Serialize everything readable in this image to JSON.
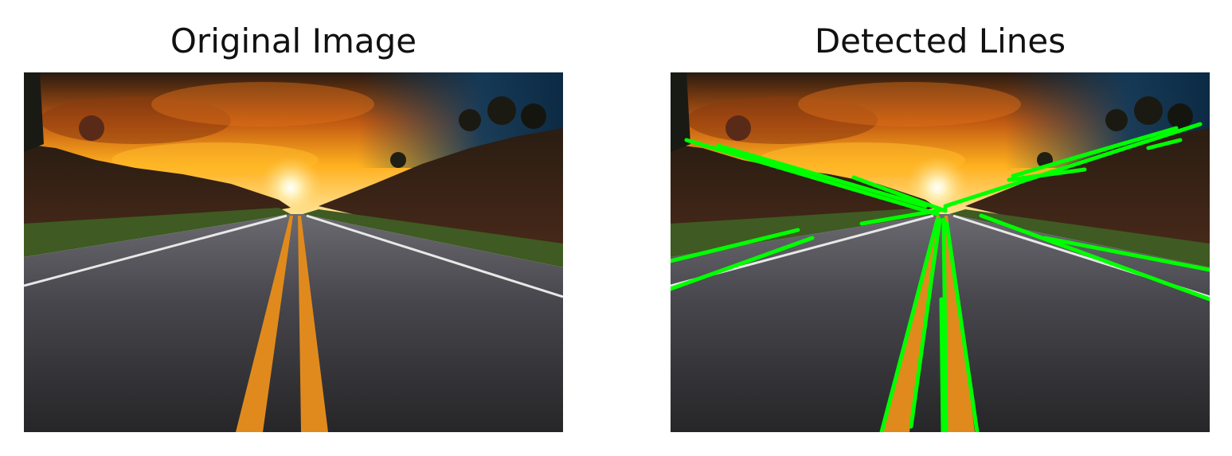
{
  "figure": {
    "panels": [
      {
        "title": "Original Image"
      },
      {
        "title": "Detected Lines"
      }
    ]
  },
  "colors": {
    "detected_line": "#00ff00",
    "lane_marking_center": "#e08a1e",
    "lane_marking_edge": "#e8e8e8",
    "sky_glow": "#ff9a1a",
    "sky_top_right": "#123a5a",
    "road": "#3a3a3e"
  }
}
